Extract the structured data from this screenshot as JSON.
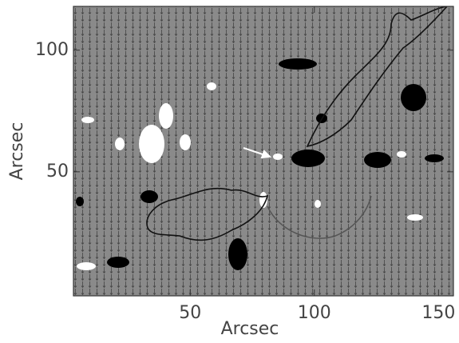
{
  "chart_data": {
    "type": "vector_field",
    "xlabel": "Arcsec",
    "ylabel": "Arcsec",
    "xlim": [
      3,
      156
    ],
    "ylim": [
      -1,
      118
    ],
    "xticks": [
      50,
      100,
      150
    ],
    "yticks": [
      50,
      100
    ]
  }
}
